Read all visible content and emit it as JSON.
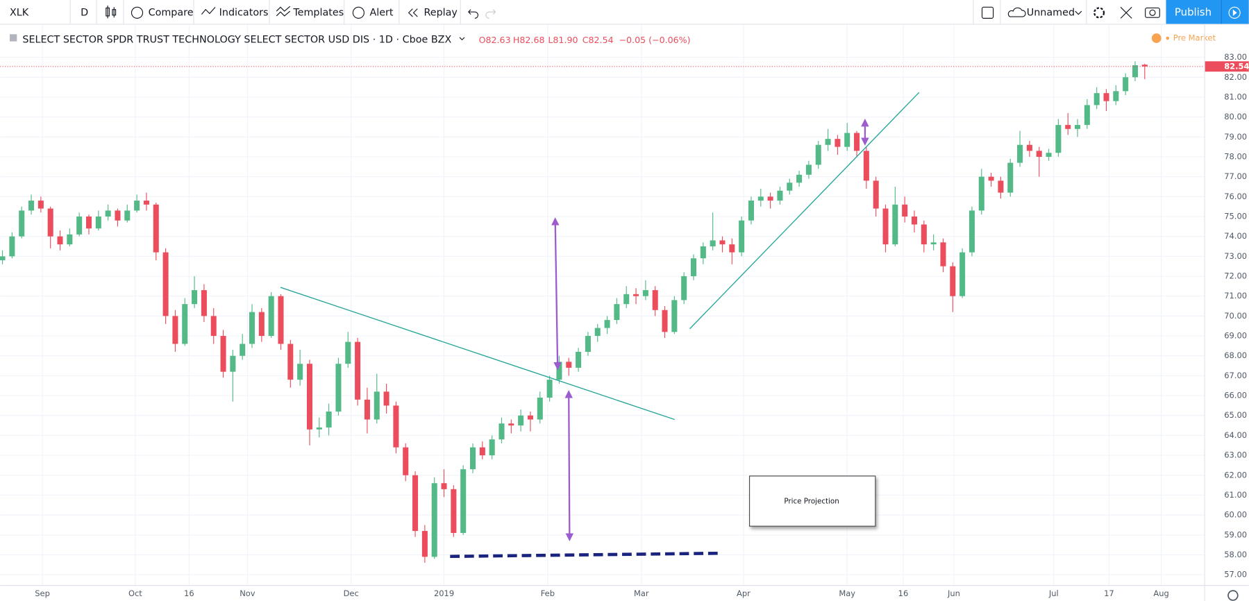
{
  "toolbar": {
    "symbol": "XLK",
    "interval": "D",
    "compare": "Compare",
    "indicators": "Indicators",
    "templates": "Templates",
    "alert": "Alert",
    "replay": "Replay",
    "layout_name": "Unnamed",
    "publish": "Publish"
  },
  "legend": {
    "title": "SELECT SECTOR SPDR TRUST TECHNOLOGY SELECT SECTOR USD DIS · 1D · Cboe BZX",
    "open": "O82.63",
    "high": "H82.68",
    "low": "L81.90",
    "close": "C82.54",
    "change": "−0.05 (−0.06%)",
    "session": "Pre Market"
  },
  "last_price_label": "82.54",
  "annotation": "Price Projection",
  "chart_data": {
    "type": "candlestick",
    "up_color": "#53b987",
    "down_color": "#eb4d5c",
    "grid": true,
    "ylim": [
      56.48,
      84.68
    ],
    "yticks": [
      {
        "value": 57,
        "label": "57.00"
      },
      {
        "value": 58,
        "label": "58.00"
      },
      {
        "value": 59,
        "label": "59.00"
      },
      {
        "value": 60,
        "label": "60.00"
      },
      {
        "value": 61,
        "label": "61.00"
      },
      {
        "value": 62,
        "label": "62.00"
      },
      {
        "value": 63,
        "label": "63.00"
      },
      {
        "value": 64,
        "label": "64.00"
      },
      {
        "value": 65,
        "label": "65.00"
      },
      {
        "value": 66,
        "label": "66.00"
      },
      {
        "value": 67,
        "label": "67.00"
      },
      {
        "value": 68,
        "label": "68.00"
      },
      {
        "value": 69,
        "label": "69.00"
      },
      {
        "value": 70,
        "label": "70.00"
      },
      {
        "value": 71,
        "label": "71.00"
      },
      {
        "value": 72,
        "label": "72.00"
      },
      {
        "value": 73,
        "label": "73.00"
      },
      {
        "value": 74,
        "label": "74.00"
      },
      {
        "value": 75,
        "label": "75.00"
      },
      {
        "value": 76,
        "label": "76.00"
      },
      {
        "value": 77,
        "label": "77.00"
      },
      {
        "value": 78,
        "label": "78.00"
      },
      {
        "value": 79,
        "label": "79.00"
      },
      {
        "value": 80,
        "label": "80.00"
      },
      {
        "value": 81,
        "label": "81.00"
      },
      {
        "value": 82,
        "label": "82.00"
      },
      {
        "value": 83,
        "label": "83.00"
      }
    ],
    "xlim": [
      -0.24,
      125.2
    ],
    "xticks": [
      {
        "value": 4.16,
        "label": "Sep"
      },
      {
        "value": 13.84,
        "label": "Oct"
      },
      {
        "value": 19.44,
        "label": "16"
      },
      {
        "value": 25.52,
        "label": "Nov"
      },
      {
        "value": 36.32,
        "label": "Dec"
      },
      {
        "value": 46,
        "label": "2019"
      },
      {
        "value": 56.8,
        "label": "Feb"
      },
      {
        "value": 66.56,
        "label": "Mar"
      },
      {
        "value": 77.2,
        "label": "Apr"
      },
      {
        "value": 88,
        "label": "May"
      },
      {
        "value": 93.84,
        "label": "16"
      },
      {
        "value": 99.12,
        "label": "Jun"
      },
      {
        "value": 109.52,
        "label": "Jul"
      },
      {
        "value": 115.28,
        "label": "17"
      },
      {
        "value": 120.72,
        "label": "Aug"
      }
    ],
    "candles": [
      [
        72.8,
        73.3,
        72.6,
        73.0
      ],
      [
        73.0,
        74.2,
        72.9,
        74.0
      ],
      [
        74.0,
        75.5,
        73.9,
        75.3
      ],
      [
        75.3,
        76.1,
        75.1,
        75.8
      ],
      [
        75.8,
        76.0,
        75.2,
        75.4
      ],
      [
        75.4,
        75.5,
        73.4,
        74.0
      ],
      [
        74.0,
        74.3,
        73.3,
        73.6
      ],
      [
        73.6,
        74.4,
        73.5,
        74.1
      ],
      [
        74.1,
        75.2,
        74.0,
        75.0
      ],
      [
        75.0,
        75.1,
        74.1,
        74.4
      ],
      [
        74.4,
        75.3,
        74.3,
        75.0
      ],
      [
        75.0,
        75.6,
        74.8,
        75.3
      ],
      [
        75.3,
        75.4,
        74.5,
        74.8
      ],
      [
        74.8,
        75.6,
        74.7,
        75.3
      ],
      [
        75.3,
        76.1,
        75.2,
        75.8
      ],
      [
        75.8,
        76.2,
        75.3,
        75.6
      ],
      [
        75.6,
        75.7,
        72.8,
        73.2
      ],
      [
        73.2,
        73.4,
        69.6,
        70.0
      ],
      [
        70.0,
        70.3,
        68.2,
        68.6
      ],
      [
        68.6,
        70.9,
        68.5,
        70.6
      ],
      [
        70.6,
        72.0,
        70.4,
        71.3
      ],
      [
        71.3,
        71.6,
        69.7,
        70.0
      ],
      [
        70.0,
        70.4,
        68.6,
        69.0
      ],
      [
        69.0,
        69.3,
        66.9,
        67.2
      ],
      [
        67.2,
        68.3,
        65.7,
        68.0
      ],
      [
        68.0,
        69.1,
        67.8,
        68.6
      ],
      [
        68.6,
        70.6,
        68.4,
        70.2
      ],
      [
        70.2,
        70.4,
        68.7,
        69.0
      ],
      [
        69.0,
        71.2,
        68.9,
        71.0
      ],
      [
        71.0,
        71.1,
        68.3,
        68.6
      ],
      [
        68.6,
        68.8,
        66.4,
        66.8
      ],
      [
        66.8,
        68.3,
        66.5,
        67.6
      ],
      [
        67.6,
        67.8,
        63.5,
        64.3
      ],
      [
        64.3,
        64.9,
        63.9,
        64.4
      ],
      [
        64.4,
        65.6,
        64.0,
        65.2
      ],
      [
        65.2,
        67.9,
        65.0,
        67.6
      ],
      [
        67.6,
        69.2,
        67.4,
        68.7
      ],
      [
        68.7,
        68.9,
        65.5,
        65.8
      ],
      [
        65.8,
        66.4,
        64.1,
        64.8
      ],
      [
        64.8,
        67.1,
        64.6,
        66.2
      ],
      [
        66.2,
        66.6,
        65.1,
        65.5
      ],
      [
        65.5,
        65.7,
        63.1,
        63.4
      ],
      [
        63.4,
        63.6,
        61.7,
        62.0
      ],
      [
        62.0,
        62.2,
        58.9,
        59.2
      ],
      [
        59.2,
        59.5,
        57.6,
        57.9
      ],
      [
        57.9,
        61.9,
        57.8,
        61.6
      ],
      [
        61.6,
        62.3,
        60.9,
        61.3
      ],
      [
        61.3,
        61.5,
        58.9,
        59.1
      ],
      [
        59.1,
        62.5,
        59.0,
        62.3
      ],
      [
        62.3,
        63.6,
        62.1,
        63.4
      ],
      [
        63.4,
        63.7,
        62.8,
        63.0
      ],
      [
        63.0,
        64.0,
        62.8,
        63.8
      ],
      [
        63.8,
        64.9,
        63.6,
        64.6
      ],
      [
        64.6,
        64.8,
        64.1,
        64.5
      ],
      [
        64.5,
        65.3,
        64.2,
        65.0
      ],
      [
        65.0,
        65.2,
        64.2,
        64.8
      ],
      [
        64.8,
        66.2,
        64.6,
        65.9
      ],
      [
        65.9,
        67.0,
        65.7,
        66.8
      ],
      [
        66.8,
        68.0,
        66.6,
        67.7
      ],
      [
        67.7,
        67.9,
        67.0,
        67.4
      ],
      [
        67.4,
        68.4,
        67.2,
        68.2
      ],
      [
        68.2,
        69.2,
        68.0,
        69.0
      ],
      [
        69.0,
        69.6,
        68.7,
        69.4
      ],
      [
        69.4,
        70.0,
        69.1,
        69.8
      ],
      [
        69.8,
        70.9,
        69.6,
        70.6
      ],
      [
        70.6,
        71.5,
        70.4,
        71.1
      ],
      [
        71.1,
        71.4,
        70.6,
        71.0
      ],
      [
        71.0,
        71.8,
        70.8,
        71.3
      ],
      [
        71.3,
        71.5,
        70.0,
        70.3
      ],
      [
        70.3,
        70.5,
        68.9,
        69.2
      ],
      [
        69.2,
        71.0,
        69.1,
        70.8
      ],
      [
        70.8,
        72.2,
        70.6,
        72.0
      ],
      [
        72.0,
        73.1,
        71.8,
        72.9
      ],
      [
        72.9,
        73.7,
        72.6,
        73.5
      ],
      [
        73.5,
        75.2,
        73.3,
        73.8
      ],
      [
        73.8,
        74.0,
        73.2,
        73.6
      ],
      [
        73.6,
        73.9,
        72.6,
        73.2
      ],
      [
        73.2,
        75.0,
        73.0,
        74.8
      ],
      [
        74.8,
        76.0,
        74.6,
        75.8
      ],
      [
        75.8,
        76.4,
        75.5,
        76.0
      ],
      [
        76.0,
        76.2,
        75.4,
        75.8
      ],
      [
        75.8,
        76.5,
        75.6,
        76.3
      ],
      [
        76.3,
        76.9,
        76.1,
        76.7
      ],
      [
        76.7,
        77.3,
        76.5,
        77.1
      ],
      [
        77.1,
        77.8,
        76.9,
        77.6
      ],
      [
        77.6,
        78.8,
        77.4,
        78.6
      ],
      [
        78.6,
        79.4,
        78.3,
        78.9
      ],
      [
        78.9,
        79.1,
        78.1,
        78.5
      ],
      [
        78.5,
        79.7,
        78.3,
        79.2
      ],
      [
        79.2,
        79.3,
        78.0,
        78.3
      ],
      [
        78.3,
        78.5,
        76.4,
        76.8
      ],
      [
        76.8,
        77.0,
        75.0,
        75.4
      ],
      [
        75.4,
        75.6,
        73.2,
        73.6
      ],
      [
        73.6,
        76.5,
        73.5,
        75.6
      ],
      [
        75.6,
        76.0,
        74.7,
        75.0
      ],
      [
        75.0,
        75.3,
        74.2,
        74.6
      ],
      [
        74.6,
        74.8,
        73.2,
        73.6
      ],
      [
        73.6,
        74.1,
        73.3,
        73.7
      ],
      [
        73.7,
        73.9,
        72.2,
        72.5
      ],
      [
        72.5,
        72.7,
        70.2,
        71.0
      ],
      [
        71.0,
        73.4,
        70.9,
        73.2
      ],
      [
        73.2,
        75.5,
        73.0,
        75.3
      ],
      [
        75.3,
        77.4,
        75.1,
        77.0
      ],
      [
        77.0,
        77.2,
        76.5,
        76.8
      ],
      [
        76.8,
        77.0,
        75.9,
        76.2
      ],
      [
        76.2,
        77.9,
        76.0,
        77.7
      ],
      [
        77.7,
        79.3,
        77.5,
        78.6
      ],
      [
        78.6,
        78.8,
        78.0,
        78.3
      ],
      [
        78.3,
        78.5,
        77.0,
        78.0
      ],
      [
        78.0,
        78.4,
        77.8,
        78.2
      ],
      [
        78.2,
        79.9,
        78.0,
        79.6
      ],
      [
        79.6,
        80.2,
        79.1,
        79.4
      ],
      [
        79.4,
        79.9,
        79.0,
        79.6
      ],
      [
        79.6,
        80.9,
        79.4,
        80.6
      ],
      [
        80.6,
        81.5,
        80.4,
        81.2
      ],
      [
        81.2,
        81.4,
        80.3,
        80.8
      ],
      [
        80.8,
        81.6,
        80.6,
        81.3
      ],
      [
        81.3,
        82.2,
        81.1,
        82.0
      ],
      [
        82.0,
        82.8,
        81.8,
        82.6
      ],
      [
        82.63,
        82.68,
        81.9,
        82.54
      ]
    ]
  }
}
